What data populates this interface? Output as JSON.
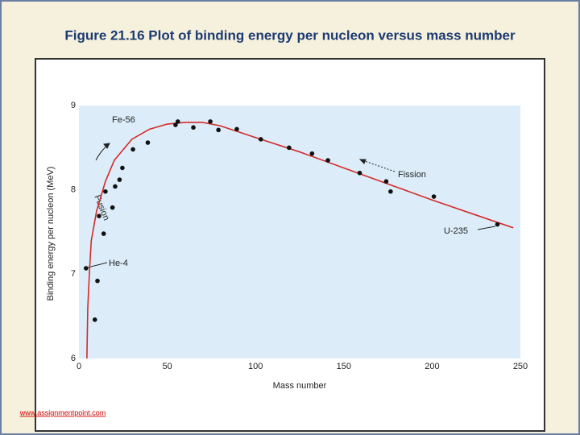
{
  "slide": {
    "title": "Figure 21.16 Plot of binding energy per nucleon versus mass number",
    "footer": "www.assignmentpoint.com"
  },
  "chart_data": {
    "type": "scatter",
    "xlabel": "Mass number",
    "ylabel": "Binding energy per nucleon (MeV)",
    "xlim": [
      0,
      250
    ],
    "ylim": [
      6,
      9
    ],
    "xticks": [
      0,
      50,
      100,
      150,
      200,
      250
    ],
    "yticks": [
      6,
      7,
      8,
      9
    ],
    "grid": false,
    "annotations": [
      "Fe-56",
      "Fusion",
      "Fission",
      "He-4",
      "U-235"
    ],
    "series": [
      {
        "style": "line",
        "color": "#d42a2a",
        "x": [
          4.5,
          5,
          6,
          7,
          10,
          15,
          20,
          30,
          40,
          50,
          60,
          70,
          80,
          100,
          125,
          150,
          175,
          200,
          225,
          246
        ],
        "values": [
          6.0,
          6.6,
          7.05,
          7.4,
          7.75,
          8.1,
          8.35,
          8.6,
          8.72,
          8.78,
          8.8,
          8.8,
          8.76,
          8.62,
          8.45,
          8.26,
          8.07,
          7.88,
          7.7,
          7.55
        ]
      },
      {
        "style": "markers",
        "color": "#111111",
        "x": [
          4,
          9,
          10.5,
          11.4,
          14,
          15,
          19,
          20.5,
          23,
          24.6,
          30.6,
          39,
          54.7,
          56,
          64.8,
          74.4,
          79,
          89.4,
          103,
          119,
          132,
          141,
          159,
          174,
          176.5,
          201,
          237
        ],
        "values": [
          7.07,
          6.46,
          6.92,
          7.69,
          7.48,
          7.98,
          7.79,
          8.04,
          8.12,
          8.26,
          8.48,
          8.56,
          8.77,
          8.81,
          8.74,
          8.81,
          8.71,
          8.72,
          8.6,
          8.5,
          8.43,
          8.35,
          8.2,
          8.1,
          7.98,
          7.92,
          7.59
        ]
      }
    ]
  }
}
